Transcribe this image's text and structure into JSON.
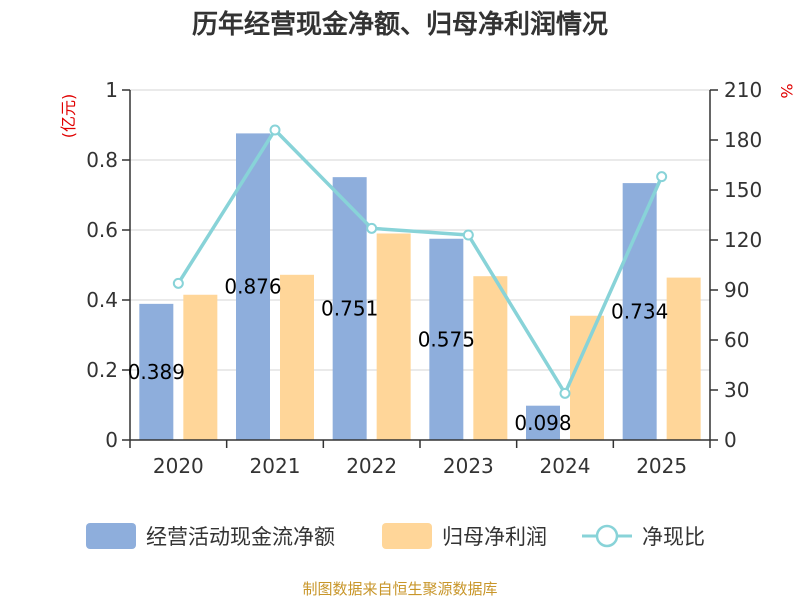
{
  "chart_data": {
    "type": "bar",
    "title": "历年经营现金净额、归母净利润情况",
    "categories": [
      "2020",
      "2021",
      "2022",
      "2023",
      "2024",
      "2025"
    ],
    "series": [
      {
        "name": "经营活动现金流净额",
        "type": "bar",
        "axis": "left",
        "color": "#8eaedc",
        "values": [
          0.389,
          0.876,
          0.751,
          0.575,
          0.098,
          0.734
        ]
      },
      {
        "name": "归母净利润",
        "type": "bar",
        "axis": "left",
        "color": "#ffd699",
        "values": [
          0.415,
          0.472,
          0.59,
          0.468,
          0.355,
          0.464
        ]
      },
      {
        "name": "净现比",
        "type": "line",
        "axis": "right",
        "color": "#88d3d8",
        "values": [
          94,
          186,
          127,
          123,
          28,
          158
        ]
      }
    ],
    "data_labels": [
      "0.389",
      "0.876",
      "0.751",
      "0.575",
      "0.098",
      "0.734"
    ],
    "left_axis": {
      "unit": "(亿元)",
      "ylim": [
        0,
        1
      ],
      "ticks": [
        "0",
        "0.2",
        "0.4",
        "0.6",
        "0.8",
        "1"
      ]
    },
    "right_axis": {
      "unit": "%",
      "ylim": [
        0,
        210
      ],
      "ticks": [
        "0",
        "30",
        "60",
        "90",
        "120",
        "150",
        "180",
        "210"
      ]
    },
    "grid": true,
    "legend_position": "bottom"
  },
  "source": "制图数据来自恒生聚源数据库"
}
